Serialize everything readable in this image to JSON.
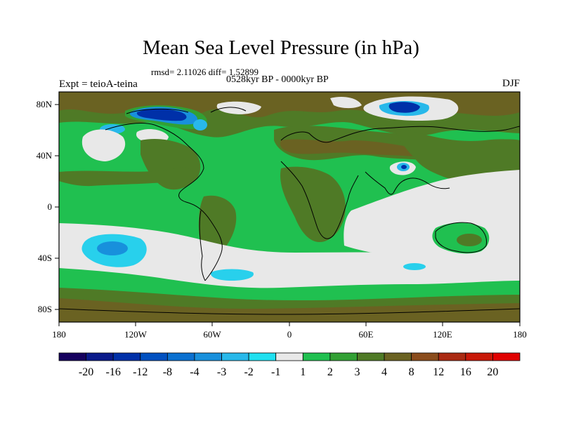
{
  "plot": {
    "title": "Mean Sea Level Pressure (in hPa)",
    "stats": "rmsd= 2.11026 diff= 1.52899",
    "period": "0528kyr BP - 0000kyr BP",
    "experiment": "Expt = teioA-teina",
    "season": "DJF"
  },
  "axes": {
    "lat_ticks": [
      "80N",
      "40N",
      "0",
      "40S",
      "80S"
    ],
    "lon_ticks": [
      "180",
      "120W",
      "60W",
      "0",
      "60E",
      "120E",
      "180"
    ]
  },
  "colorbar": {
    "labels": [
      "-20",
      "-16",
      "-12",
      "-8",
      "-4",
      "-3",
      "-2",
      "-1",
      "1",
      "2",
      "3",
      "4",
      "8",
      "12",
      "16",
      "20"
    ],
    "colors": [
      "#15005e",
      "#0a1a8a",
      "#0030a8",
      "#0050c0",
      "#0a70d0",
      "#1890dc",
      "#28b8ea",
      "#20e0f0",
      "#e8e8e8",
      "#20c050",
      "#32a034",
      "#4f7a26",
      "#6a6222",
      "#8a4c1c",
      "#aa2a12",
      "#c81808",
      "#e00000"
    ]
  },
  "colors": {
    "land_brown": "#6a6222",
    "olive": "#4f7a26",
    "green": "#20c050",
    "light": "#e8e8e8",
    "cyan": "#28d0ec",
    "blue": "#1890dc",
    "darkblue": "#0030a8"
  }
}
